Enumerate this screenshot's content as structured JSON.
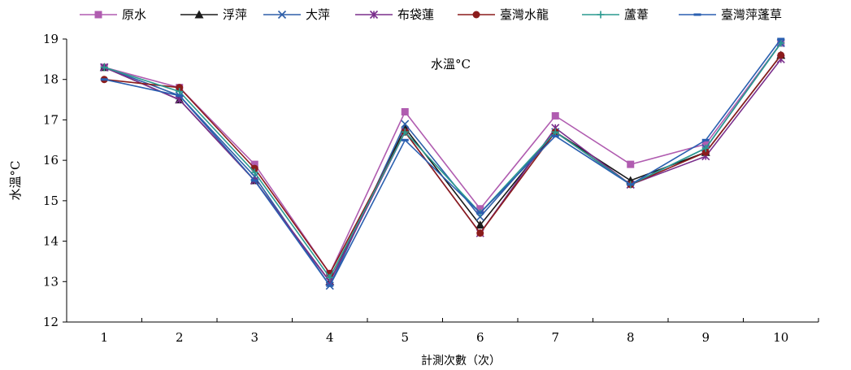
{
  "chart_data": {
    "type": "line",
    "title": "水溫°C",
    "xlabel": "計測次數（次）",
    "ylabel": "水溫°C",
    "categories": [
      "1",
      "2",
      "3",
      "4",
      "5",
      "6",
      "7",
      "8",
      "9",
      "10"
    ],
    "ylim": [
      12,
      19
    ],
    "yticks": [
      12,
      13,
      14,
      15,
      16,
      17,
      18,
      19
    ],
    "grid": false,
    "legend_position": "top",
    "series": [
      {
        "name": "原水",
        "color": "#b05cb0",
        "marker": "square",
        "values": [
          18.3,
          17.8,
          15.9,
          13.2,
          17.2,
          14.8,
          17.1,
          15.9,
          16.4,
          18.9
        ]
      },
      {
        "name": "浮萍",
        "color": "#1a1a1a",
        "marker": "triangle",
        "values": [
          18.3,
          17.5,
          15.5,
          13.0,
          16.8,
          14.4,
          16.7,
          15.5,
          16.2,
          18.6
        ]
      },
      {
        "name": "大萍",
        "color": "#2f5fa8",
        "marker": "x",
        "values": [
          18.3,
          17.6,
          15.6,
          12.9,
          16.9,
          14.6,
          16.7,
          15.4,
          16.3,
          18.9
        ]
      },
      {
        "name": "布袋蓮",
        "color": "#7a2f8c",
        "marker": "star",
        "values": [
          18.3,
          17.5,
          15.5,
          13.0,
          16.7,
          14.2,
          16.8,
          15.4,
          16.1,
          18.5
        ]
      },
      {
        "name": "臺灣水龍",
        "color": "#8b1c1c",
        "marker": "circle",
        "values": [
          18.0,
          17.8,
          15.8,
          13.2,
          16.7,
          14.2,
          16.7,
          15.4,
          16.2,
          18.6
        ]
      },
      {
        "name": "蘆葦",
        "color": "#2a9a8f",
        "marker": "plus",
        "values": [
          18.3,
          17.7,
          15.7,
          13.1,
          16.7,
          14.7,
          16.7,
          15.4,
          16.3,
          18.9
        ]
      },
      {
        "name": "臺灣萍蓬草",
        "color": "#2a5fb0",
        "marker": "dash",
        "values": [
          18.0,
          17.6,
          15.5,
          12.9,
          16.5,
          14.7,
          16.6,
          15.4,
          16.5,
          19.0
        ]
      }
    ]
  }
}
